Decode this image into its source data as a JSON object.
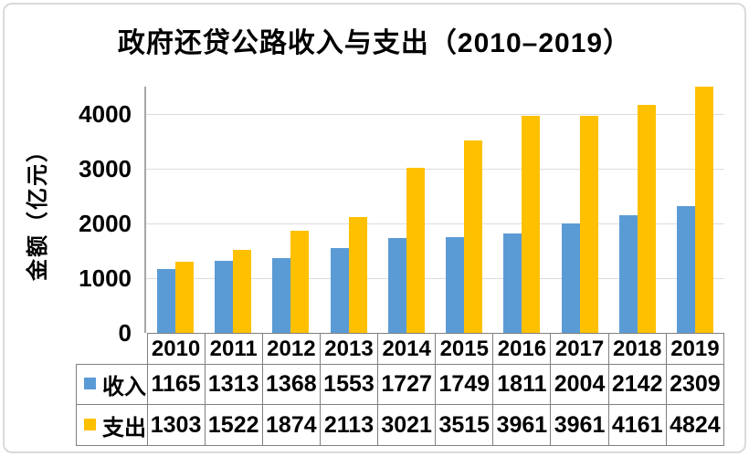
{
  "chart_data": {
    "type": "bar",
    "title": "政府还贷公路收入与支出（2010–2019）",
    "ylabel": "金额（亿元）",
    "xlabel": "",
    "categories": [
      "2010",
      "2011",
      "2012",
      "2013",
      "2014",
      "2015",
      "2016",
      "2017",
      "2018",
      "2019"
    ],
    "series": [
      {
        "key": "income",
        "name": "收入",
        "color": "#5b9bd5",
        "values": [
          1165,
          1313,
          1368,
          1553,
          1727,
          1749,
          1811,
          2004,
          2142,
          2309
        ]
      },
      {
        "key": "expense",
        "name": "支出",
        "color": "#ffc000",
        "values": [
          1303,
          1522,
          1874,
          2113,
          3021,
          3515,
          3961,
          3961,
          4161,
          4824
        ]
      }
    ],
    "ylim": [
      0,
      4500
    ],
    "yticks": [
      0,
      1000,
      2000,
      3000,
      4000
    ],
    "grid": true,
    "legend_position": "data-table-left",
    "data_table_shown": true
  },
  "colors": {
    "income_bar": "#5b9bd5",
    "expense_bar": "#ffc000",
    "gridline": "#dcdcdc",
    "axis_line": "#a6a6a6",
    "table_border": "#7f7f7f",
    "text": "#000000",
    "background": "#ffffff",
    "outer_border": "#dadada"
  }
}
